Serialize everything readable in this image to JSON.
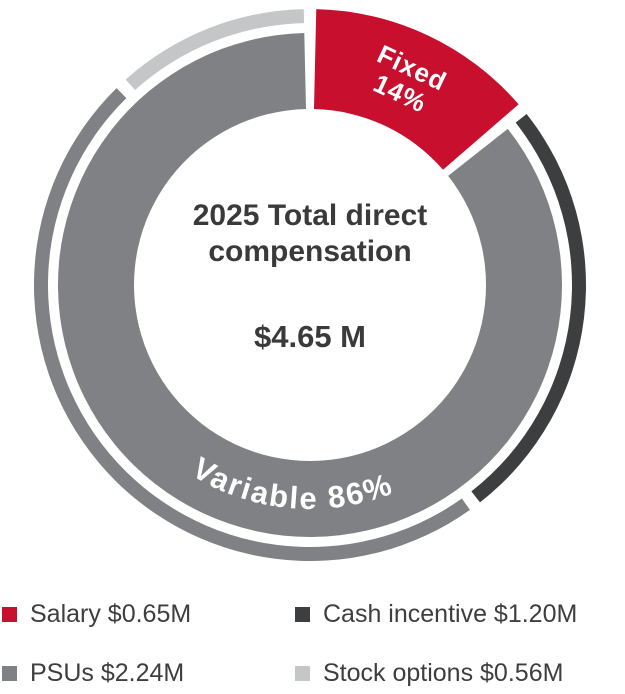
{
  "chart_data": {
    "type": "pie",
    "variant": "double-ring-donut",
    "center_title_line1": "2025 Total direct",
    "center_title_line2": "compensation",
    "center_value": "$4.65 M",
    "total_value_musd": 4.65,
    "inner_ring": [
      {
        "name": "Fixed",
        "pct": 14,
        "color": "#c8102e"
      },
      {
        "name": "Variable",
        "pct": 86,
        "color": "#808184"
      }
    ],
    "fixed_label_line1": "Fixed",
    "fixed_label_line2": "14%",
    "variable_label": "Variable 86%",
    "outer_ring": [
      {
        "name": "Salary",
        "value_musd": 0.65,
        "pct": 14.0,
        "color": "#c8102e"
      },
      {
        "name": "Cash incentive",
        "value_musd": 1.2,
        "pct": 25.8,
        "color": "#3d3e40"
      },
      {
        "name": "PSUs",
        "value_musd": 2.24,
        "pct": 48.2,
        "color": "#808184"
      },
      {
        "name": "Stock options",
        "value_musd": 0.56,
        "pct": 12.0,
        "color": "#c5c6c8"
      }
    ],
    "legend": [
      {
        "label": "Salary $0.65M",
        "color": "#c8102e"
      },
      {
        "label": "Cash incentive $1.20M",
        "color": "#3d3e40"
      },
      {
        "label": "PSUs $2.24M",
        "color": "#808184"
      },
      {
        "label": "Stock options $0.56M",
        "color": "#c5c6c8"
      }
    ],
    "legend_position": "bottom",
    "grid": false
  }
}
